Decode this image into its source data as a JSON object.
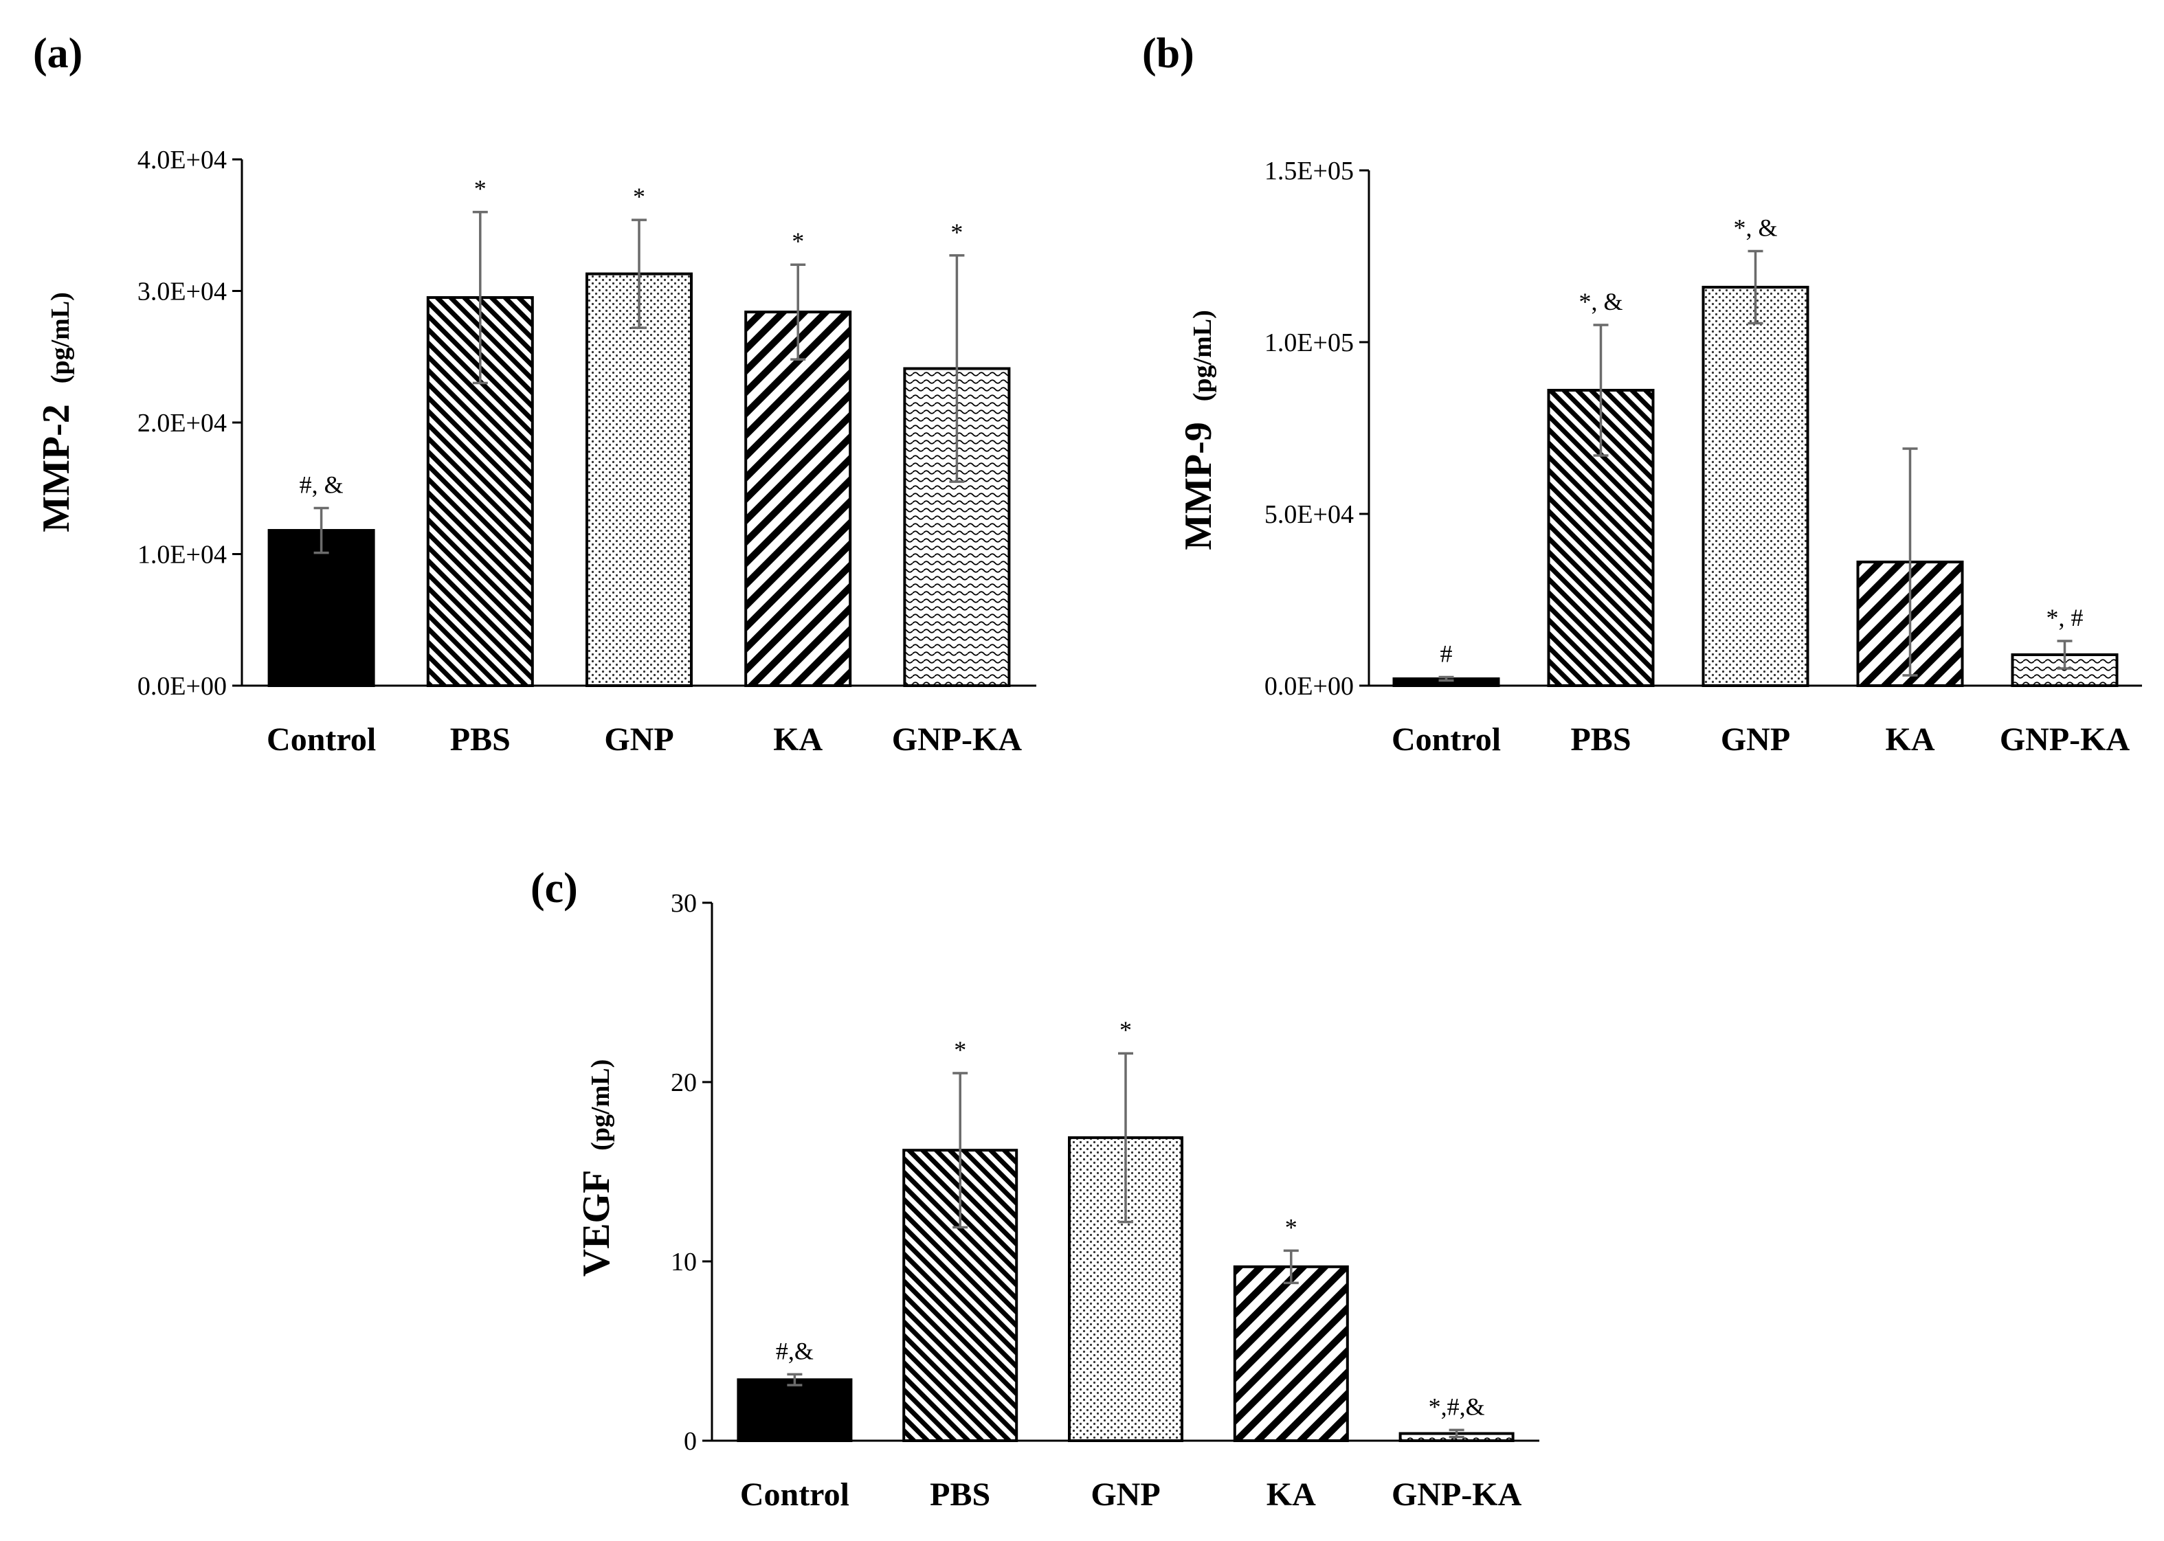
{
  "chart_data": [
    {
      "id": "a",
      "panel_label": "(a)",
      "type": "bar",
      "ylabel": "MMP-2",
      "ylabel_unit": "(pg/mL)",
      "ylim": [
        0,
        40000
      ],
      "yticks": [
        0,
        10000,
        20000,
        30000,
        40000
      ],
      "ytick_labels": [
        "0.0E+00",
        "1.0E+04",
        "2.0E+04",
        "3.0E+04",
        "4.0E+04"
      ],
      "categories": [
        "Control",
        "PBS",
        "GNP",
        "KA",
        "GNP-KA"
      ],
      "values": [
        11800,
        29500,
        31300,
        28400,
        24100
      ],
      "errors": [
        1700,
        6500,
        4100,
        3600,
        8600
      ],
      "annotations": [
        "#, &",
        "*",
        "*",
        "*",
        "*"
      ],
      "patterns": [
        "solid",
        "backslash-hatch",
        "dots",
        "slash-hatch",
        "wave"
      ]
    },
    {
      "id": "b",
      "panel_label": "(b)",
      "type": "bar",
      "ylabel": "MMP-9",
      "ylabel_unit": "(pg/mL)",
      "ylim": [
        0,
        150000
      ],
      "yticks": [
        0,
        50000,
        100000,
        150000
      ],
      "ytick_labels": [
        "0.0E+00",
        "5.0E+04",
        "1.0E+05",
        "1.5E+05"
      ],
      "categories": [
        "Control",
        "PBS",
        "GNP",
        "KA",
        "GNP-KA"
      ],
      "values": [
        2000,
        86000,
        116000,
        36000,
        9000
      ],
      "errors": [
        500,
        19000,
        10500,
        33000,
        4000
      ],
      "annotations": [
        "#",
        "*, &",
        "*, &",
        "",
        "*, #"
      ],
      "patterns": [
        "solid",
        "backslash-hatch",
        "dots",
        "slash-hatch",
        "wave"
      ]
    },
    {
      "id": "c",
      "panel_label": "(c)",
      "type": "bar",
      "ylabel": "VEGF",
      "ylabel_unit": "(pg/mL)",
      "ylim": [
        0,
        30
      ],
      "yticks": [
        0,
        10,
        20,
        30
      ],
      "ytick_labels": [
        "0",
        "10",
        "20",
        "30"
      ],
      "categories": [
        "Control",
        "PBS",
        "GNP",
        "KA",
        "GNP-KA"
      ],
      "values": [
        3.4,
        16.2,
        16.9,
        9.7,
        0.4
      ],
      "errors": [
        0.3,
        4.3,
        4.7,
        0.9,
        0.2
      ],
      "annotations": [
        "#,&",
        "*",
        "*",
        "*",
        "*,#,&"
      ],
      "patterns": [
        "solid",
        "backslash-hatch",
        "dots",
        "slash-hatch",
        "wave"
      ]
    }
  ]
}
